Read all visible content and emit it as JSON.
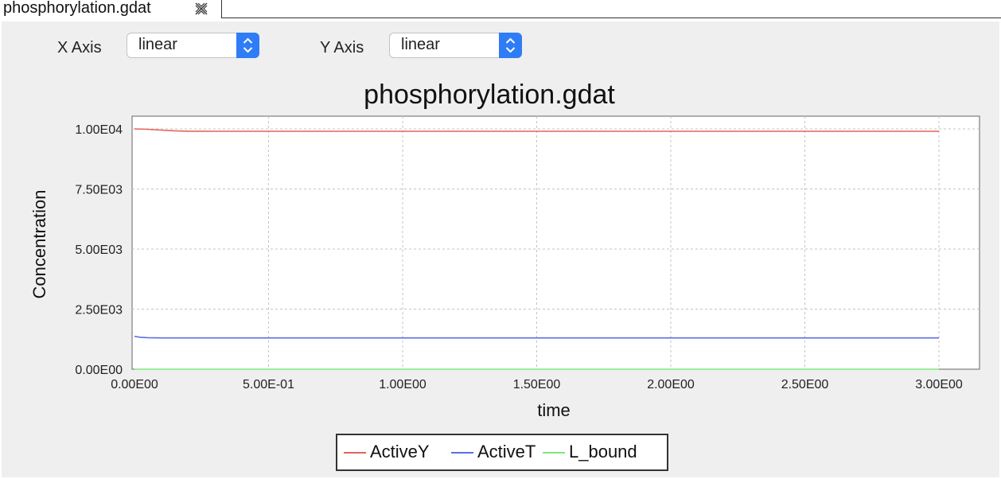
{
  "tab": {
    "title": "phosphorylation.gdat",
    "close_icon": "close-icon"
  },
  "axis_controls": {
    "x_label": "X Axis",
    "x_value": "linear",
    "y_label": "Y Axis",
    "y_value": "linear"
  },
  "chart_data": {
    "type": "line",
    "title": "phosphorylation.gdat",
    "xlabel": "time",
    "ylabel": "Concentration",
    "xlim": [
      0,
      3
    ],
    "ylim": [
      0,
      10000
    ],
    "x_ticks": [
      "0.00E00",
      "5.00E-01",
      "1.00E00",
      "1.50E00",
      "2.00E00",
      "2.50E00",
      "3.00E00"
    ],
    "y_ticks": [
      "0.00E00",
      "2.50E03",
      "5.00E03",
      "7.50E03",
      "1.00E04"
    ],
    "grid": true,
    "legend_position": "bottom",
    "series": [
      {
        "name": "ActiveY",
        "color": "#e8605a",
        "x": [
          0,
          0.05,
          0.1,
          0.15,
          0.2,
          0.3,
          0.5,
          1.0,
          1.5,
          2.0,
          2.5,
          3.0
        ],
        "y": [
          10000,
          9985,
          9950,
          9920,
          9905,
          9900,
          9900,
          9900,
          9900,
          9900,
          9900,
          9900
        ]
      },
      {
        "name": "ActiveT",
        "color": "#5a6ee8",
        "x": [
          0,
          0.02,
          0.05,
          0.1,
          0.5,
          1.0,
          1.5,
          2.0,
          2.5,
          3.0
        ],
        "y": [
          1370,
          1330,
          1310,
          1300,
          1300,
          1300,
          1300,
          1300,
          1300,
          1300
        ]
      },
      {
        "name": "L_bound",
        "color": "#7ee87a",
        "x": [
          0,
          0.05,
          0.1,
          0.5,
          1.0,
          1.5,
          2.0,
          2.5,
          3.0
        ],
        "y": [
          0,
          0,
          0,
          0,
          0,
          0,
          0,
          0,
          0
        ]
      }
    ]
  }
}
